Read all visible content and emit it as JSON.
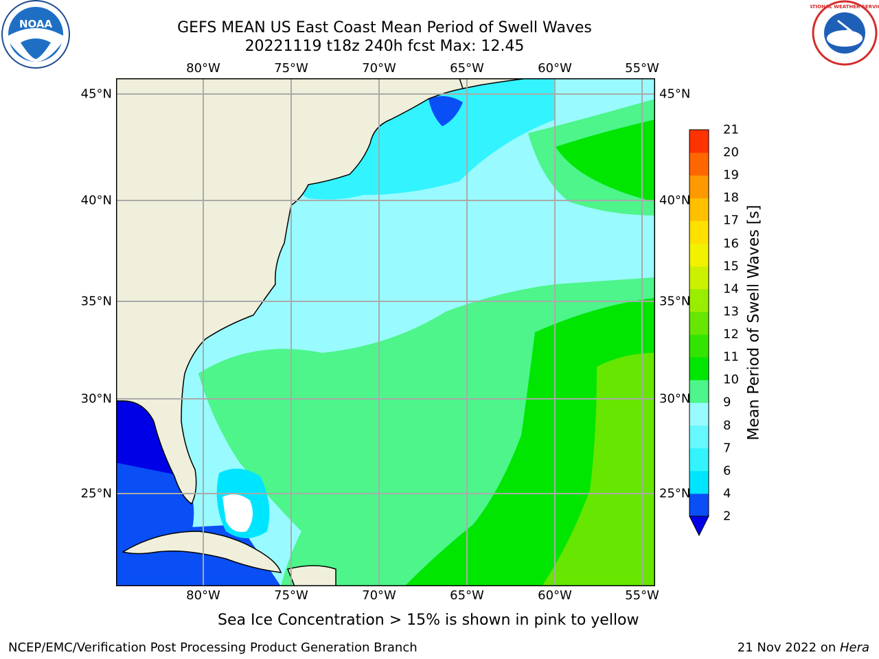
{
  "title_line1": "GEFS MEAN US East Coast Mean Period of Swell Waves",
  "title_line2": "20221119 t18z 240h fcst   Max: 12.45",
  "longitude_labels": [
    "80°W",
    "75°W",
    "70°W",
    "65°W",
    "60°W",
    "55°W"
  ],
  "latitude_labels": [
    "45°N",
    "40°N",
    "35°N",
    "30°N",
    "25°N"
  ],
  "colorbar": {
    "label": "Mean Period of Swell Waves [s]",
    "ticks": [
      "2",
      "4",
      "6",
      "7",
      "8",
      "9",
      "10",
      "11",
      "12",
      "13",
      "14",
      "15",
      "16",
      "17",
      "18",
      "19",
      "20",
      "21"
    ],
    "colors": [
      "#0a4ff5",
      "#00e5ff",
      "#33f3ff",
      "#66f7ff",
      "#99faff",
      "#4df58a",
      "#00e600",
      "#33e400",
      "#66e600",
      "#99ee00",
      "#ccf000",
      "#f2f200",
      "#ffe000",
      "#ffc000",
      "#ff9900",
      "#ff6600",
      "#ff3300",
      "#ff0000"
    ],
    "extend_color": "#0000e6"
  },
  "caption": "Sea Ice Concentration > 15% is shown in pink to yellow",
  "footer_left": "NCEP/EMC/Verification Post Processing Product Generation Branch",
  "footer_right_prefix": "21 Nov 2022 on ",
  "footer_right_host": "Hera",
  "logos": {
    "left": "NOAA",
    "right": "NATIONAL WEATHER SERVICE"
  }
}
